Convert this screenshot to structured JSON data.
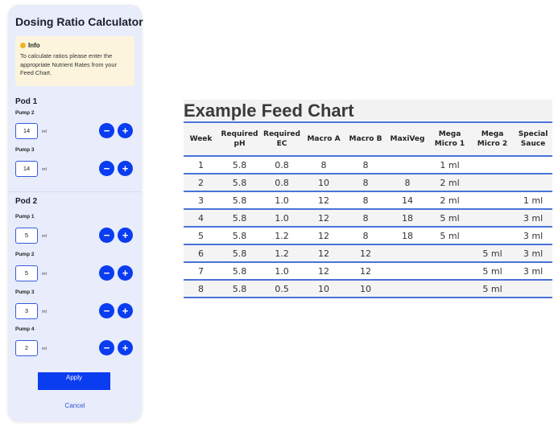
{
  "panel": {
    "title": "Dosing Ratio Calculator",
    "info": {
      "title": "Info",
      "text": "To calculate ratios please enter the appropriate Nutrient Rates from your Feed Chart."
    },
    "unit": "ml",
    "minus_symbol": "−",
    "plus_symbol": "+",
    "pods": [
      {
        "title": "Pod 1",
        "pumps": [
          {
            "label": "Pump 2",
            "value": "14"
          },
          {
            "label": "Pump 3",
            "value": "14"
          }
        ]
      },
      {
        "title": "Pod 2",
        "pumps": [
          {
            "label": "Pump 1",
            "value": "5"
          },
          {
            "label": "Pump 2",
            "value": "5"
          },
          {
            "label": "Pump 3",
            "value": "3"
          },
          {
            "label": "Pump 4",
            "value": "2"
          }
        ]
      }
    ],
    "apply_label": "Apply",
    "cancel_label": "Cancel",
    "accent_color": "#0a3cf0"
  },
  "feed_chart": {
    "title": "Example Feed Chart",
    "headers": [
      "Week",
      "Required pH",
      "Required EC",
      "Macro A",
      "Macro B",
      "MaxiVeg",
      "Mega Micro 1",
      "Mega Micro 2",
      "Special Sauce"
    ],
    "rows": [
      [
        "1",
        "5.8",
        "0.8",
        "8",
        "8",
        "",
        "1 ml",
        "",
        ""
      ],
      [
        "2",
        "5.8",
        "0.8",
        "10",
        "8",
        "8",
        "2 ml",
        "",
        ""
      ],
      [
        "3",
        "5.8",
        "1.0",
        "12",
        "8",
        "14",
        "2 ml",
        "",
        "1 ml"
      ],
      [
        "4",
        "5.8",
        "1.0",
        "12",
        "8",
        "18",
        "5 ml",
        "",
        "3 ml"
      ],
      [
        "5",
        "5.8",
        "1.2",
        "12",
        "8",
        "18",
        "5 ml",
        "",
        "3 ml"
      ],
      [
        "6",
        "5.8",
        "1.2",
        "12",
        "12",
        "",
        "",
        "5 ml",
        "3 ml"
      ],
      [
        "7",
        "5.8",
        "1.0",
        "12",
        "12",
        "",
        "",
        "5 ml",
        "3 ml"
      ],
      [
        "8",
        "5.8",
        "0.5",
        "10",
        "10",
        "",
        "",
        "5 ml",
        ""
      ]
    ]
  }
}
